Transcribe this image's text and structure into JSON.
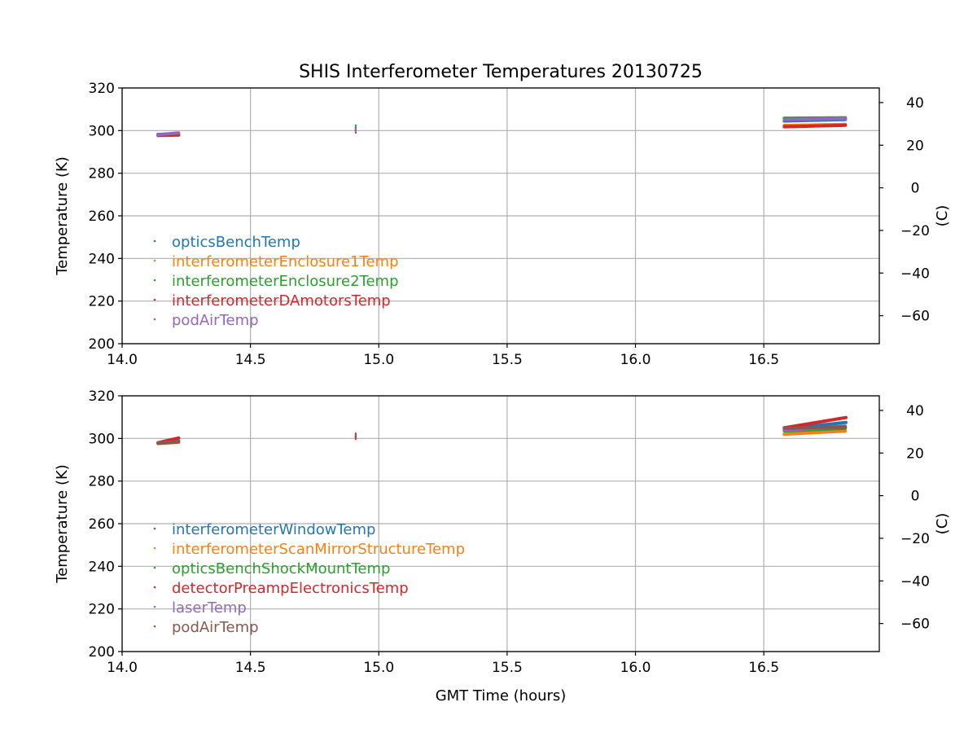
{
  "chart_data": [
    {
      "type": "scatter",
      "title": "SHIS Interferometer Temperatures 20130725",
      "xlabel": "",
      "ylabel": "Temperature (K)",
      "ylabel_right": "(C)",
      "xlim": [
        14.0,
        16.95
      ],
      "ylim": [
        200,
        320
      ],
      "xticks": [
        "14.0",
        "14.5",
        "15.0",
        "15.5",
        "16.0",
        "16.5"
      ],
      "yticks": [
        "200",
        "220",
        "240",
        "260",
        "280",
        "300",
        "320"
      ],
      "yticks_right": [
        "40",
        "20",
        "0",
        "−20",
        "−40",
        "−60"
      ],
      "grid": true,
      "legend_placement": "lower-left",
      "series": [
        {
          "name": "opticsBenchTemp",
          "color": "#1f77b4",
          "segments": [
            {
              "x": [
                14.14,
                14.22
              ],
              "y": [
                298.2,
                298.5
              ]
            },
            {
              "x": [
                14.91,
                14.91
              ],
              "y": [
                299.0,
                302.5
              ]
            },
            {
              "x": [
                16.58,
                16.82
              ],
              "y": [
                304.5,
                305.2
              ]
            }
          ]
        },
        {
          "name": "interferometerEnclosure1Temp",
          "color": "#ff7f0e",
          "segments": [
            {
              "x": [
                14.14,
                14.22
              ],
              "y": [
                297.9,
                298.1
              ]
            },
            {
              "x": [
                14.91,
                14.91
              ],
              "y": [
                299.5,
                301.5
              ]
            },
            {
              "x": [
                16.58,
                16.82
              ],
              "y": [
                302.4,
                302.9
              ]
            }
          ]
        },
        {
          "name": "interferometerEnclosure2Temp",
          "color": "#2ca02c",
          "segments": [
            {
              "x": [
                14.14,
                14.22
              ],
              "y": [
                298.0,
                298.3
              ]
            },
            {
              "x": [
                14.91,
                14.91
              ],
              "y": [
                299.5,
                301.8
              ]
            },
            {
              "x": [
                16.58,
                16.82
              ],
              "y": [
                305.8,
                306.0
              ]
            }
          ]
        },
        {
          "name": "interferometerDAmotorsTemp",
          "color": "#d62728",
          "segments": [
            {
              "x": [
                14.14,
                14.22
              ],
              "y": [
                297.7,
                297.9
              ]
            },
            {
              "x": [
                14.91,
                14.91
              ],
              "y": [
                299.0,
                301.0
              ]
            },
            {
              "x": [
                16.58,
                16.82
              ],
              "y": [
                301.8,
                302.5
              ]
            }
          ]
        },
        {
          "name": "podAirTemp",
          "color": "#9467bd",
          "segments": [
            {
              "x": [
                14.14,
                14.22
              ],
              "y": [
                298.1,
                298.9
              ]
            },
            {
              "x": [
                14.91,
                14.91
              ],
              "y": [
                299.5,
                301.0
              ]
            },
            {
              "x": [
                16.58,
                16.82
              ],
              "y": [
                305.2,
                305.6
              ]
            }
          ]
        }
      ]
    },
    {
      "type": "scatter",
      "title": "",
      "xlabel": "GMT Time (hours)",
      "ylabel": "Temperature (K)",
      "ylabel_right": "(C)",
      "xlim": [
        14.0,
        16.95
      ],
      "ylim": [
        200,
        320
      ],
      "xticks": [
        "14.0",
        "14.5",
        "15.0",
        "15.5",
        "16.0",
        "16.5"
      ],
      "yticks": [
        "200",
        "220",
        "240",
        "260",
        "280",
        "300",
        "320"
      ],
      "yticks_right": [
        "40",
        "20",
        "0",
        "−20",
        "−40",
        "−60"
      ],
      "grid": true,
      "legend_placement": "lower-left",
      "series": [
        {
          "name": "interferometerWindowTemp",
          "color": "#1f77b4",
          "segments": [
            {
              "x": [
                14.14,
                14.22
              ],
              "y": [
                297.8,
                298.8
              ]
            },
            {
              "x": [
                14.91,
                14.91
              ],
              "y": [
                300.0,
                302.0
              ]
            },
            {
              "x": [
                16.58,
                16.82
              ],
              "y": [
                304.5,
                307.5
              ]
            }
          ]
        },
        {
          "name": "interferometerScanMirrorStructureTemp",
          "color": "#ff7f0e",
          "segments": [
            {
              "x": [
                14.14,
                14.22
              ],
              "y": [
                297.6,
                298.2
              ]
            },
            {
              "x": [
                14.91,
                14.91
              ],
              "y": [
                299.5,
                301.5
              ]
            },
            {
              "x": [
                16.58,
                16.82
              ],
              "y": [
                302.0,
                303.5
              ]
            }
          ]
        },
        {
          "name": "opticsBenchShockMountTemp",
          "color": "#2ca02c",
          "segments": [
            {
              "x": [
                14.14,
                14.22
              ],
              "y": [
                297.9,
                298.4
              ]
            },
            {
              "x": [
                14.91,
                14.91
              ],
              "y": [
                300.0,
                301.8
              ]
            },
            {
              "x": [
                16.58,
                16.82
              ],
              "y": [
                303.5,
                304.8
              ]
            }
          ]
        },
        {
          "name": "detectorPreampElectronicsTemp",
          "color": "#d62728",
          "segments": [
            {
              "x": [
                14.14,
                14.22
              ],
              "y": [
                298.0,
                300.2
              ]
            },
            {
              "x": [
                14.91,
                14.91
              ],
              "y": [
                300.5,
                302.5
              ]
            },
            {
              "x": [
                16.58,
                16.82
              ],
              "y": [
                305.0,
                309.8
              ]
            }
          ]
        },
        {
          "name": "laserTemp",
          "color": "#9467bd",
          "segments": [
            {
              "x": [
                14.14,
                14.22
              ],
              "y": [
                297.8,
                298.5
              ]
            },
            {
              "x": [
                14.91,
                14.91
              ],
              "y": [
                300.0,
                301.5
              ]
            },
            {
              "x": [
                16.58,
                16.82
              ],
              "y": [
                303.8,
                305.8
              ]
            }
          ]
        },
        {
          "name": "podAirTemp",
          "color": "#8c564b",
          "segments": [
            {
              "x": [
                14.14,
                14.22
              ],
              "y": [
                297.7,
                298.4
              ]
            },
            {
              "x": [
                14.91,
                14.91
              ],
              "y": [
                299.8,
                301.2
              ]
            },
            {
              "x": [
                16.58,
                16.82
              ],
              "y": [
                304.8,
                305.4
              ]
            }
          ]
        }
      ]
    }
  ]
}
